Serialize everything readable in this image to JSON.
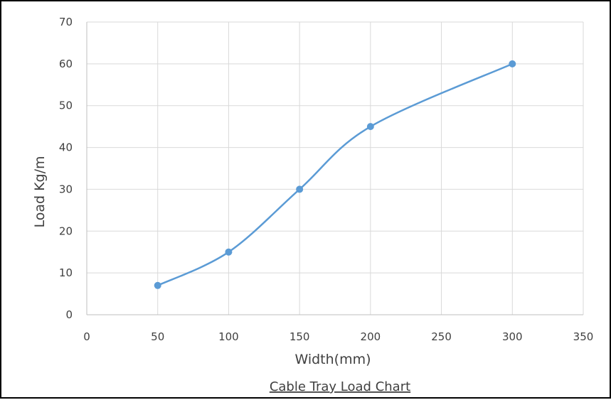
{
  "chart_data": {
    "type": "line",
    "title": "",
    "caption": "Cable Tray Load Chart",
    "xlabel": "Width(mm)",
    "ylabel": "Load Kg/m",
    "x": [
      50,
      100,
      150,
      200,
      300
    ],
    "series": [
      {
        "values": [
          7,
          15,
          30,
          45,
          60
        ]
      }
    ],
    "xlim": [
      0,
      350
    ],
    "ylim": [
      0,
      70
    ],
    "x_ticks": [
      0,
      50,
      100,
      150,
      200,
      250,
      300,
      350
    ],
    "y_ticks": [
      0,
      10,
      20,
      30,
      40,
      50,
      60,
      70
    ],
    "x_tick_labels": [
      "0",
      "50",
      "100",
      "150",
      "200",
      "250",
      "300",
      "350"
    ],
    "y_tick_labels": [
      "0",
      "10",
      "20",
      "30",
      "40",
      "50",
      "60",
      "70"
    ],
    "grid": true,
    "smooth": true,
    "markers": true,
    "legend": "none",
    "colors": {
      "series": "#5b9bd5",
      "grid": "#d9d9d9",
      "axis": "#bfbfbf",
      "text": "#404040",
      "border": "#000000"
    }
  }
}
